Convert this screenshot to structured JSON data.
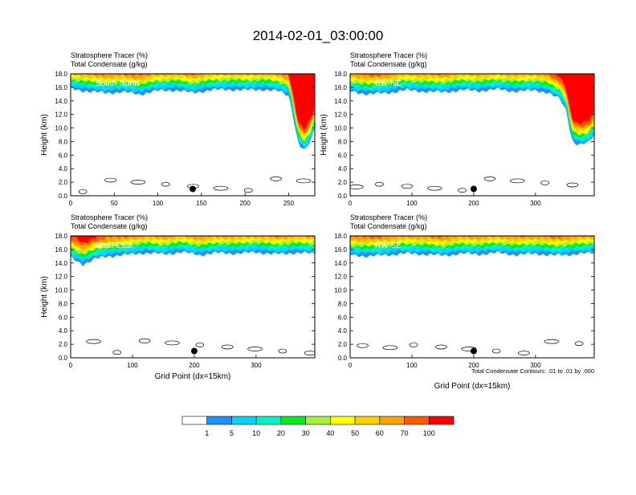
{
  "page_title": "2014-02-01_03:00:00",
  "chart_data": [
    {
      "type": "heatmap",
      "label": "South-North",
      "title_lines": [
        "Stratosphere Tracer   (%)",
        "Total Condensate   (g/kg)"
      ],
      "ylabel": "Height (km)",
      "xlabel": "",
      "xlim": [
        0,
        280
      ],
      "ylim": [
        0,
        18
      ],
      "xticks": [
        0,
        50,
        100,
        150,
        200,
        250
      ],
      "yticks": [
        "0.0",
        "2.0",
        "4.0",
        "6.0",
        "8.0",
        "10.0",
        "12.0",
        "14.0",
        "16.0",
        "18.0"
      ],
      "tracer_base_km": [
        [
          0,
          15.8
        ],
        [
          20,
          15.4
        ],
        [
          40,
          15.2
        ],
        [
          60,
          15.3
        ],
        [
          80,
          15.0
        ],
        [
          100,
          15.5
        ],
        [
          120,
          15.6
        ],
        [
          140,
          15.2
        ],
        [
          160,
          15.6
        ],
        [
          180,
          15.7
        ],
        [
          200,
          15.6
        ],
        [
          220,
          15.7
        ],
        [
          240,
          15.4
        ],
        [
          250,
          14.8
        ],
        [
          255,
          12.0
        ],
        [
          258,
          9.5
        ],
        [
          262,
          7.5
        ],
        [
          268,
          6.6
        ],
        [
          275,
          8.0
        ],
        [
          280,
          10.0
        ]
      ],
      "marker": {
        "x": 140,
        "y": 1.0
      }
    },
    {
      "type": "heatmap",
      "label": "SW-NE",
      "title_lines": [
        "Stratosphere Tracer   (%)",
        "Total Condensate   (g/kg)"
      ],
      "ylabel": "Height (km)",
      "xlabel": "",
      "xlim": [
        0,
        395
      ],
      "ylim": [
        0,
        18
      ],
      "xticks": [
        0,
        100,
        200,
        300
      ],
      "yticks": [
        "0.0",
        "2.0",
        "4.0",
        "6.0",
        "8.0",
        "10.0",
        "12.0",
        "14.0",
        "16.0",
        "18.0"
      ],
      "tracer_base_km": [
        [
          0,
          15.4
        ],
        [
          30,
          15.0
        ],
        [
          60,
          15.2
        ],
        [
          90,
          15.6
        ],
        [
          120,
          15.4
        ],
        [
          150,
          15.3
        ],
        [
          180,
          15.6
        ],
        [
          210,
          15.5
        ],
        [
          240,
          15.7
        ],
        [
          270,
          15.4
        ],
        [
          300,
          15.6
        ],
        [
          320,
          15.2
        ],
        [
          340,
          14.2
        ],
        [
          350,
          12.5
        ],
        [
          355,
          10.0
        ],
        [
          360,
          8.0
        ],
        [
          370,
          7.5
        ],
        [
          385,
          7.8
        ],
        [
          395,
          9.0
        ]
      ],
      "marker": {
        "x": 200,
        "y": 1.0
      }
    },
    {
      "type": "heatmap",
      "label": "West-East",
      "title_lines": [
        "Stratosphere Tracer   (%)",
        "Total Condensate   (g/kg)"
      ],
      "ylabel": "Height (km)",
      "xlabel": "Grid Point (dx=15km)",
      "xlim": [
        0,
        395
      ],
      "ylim": [
        0,
        18
      ],
      "xticks": [
        0,
        100,
        200,
        300
      ],
      "yticks": [
        "0.0",
        "2.0",
        "4.0",
        "6.0",
        "8.0",
        "10.0",
        "12.0",
        "14.0",
        "16.0",
        "18.0"
      ],
      "tracer_base_km": [
        [
          0,
          14.8
        ],
        [
          20,
          13.8
        ],
        [
          40,
          14.6
        ],
        [
          60,
          15.0
        ],
        [
          90,
          15.2
        ],
        [
          120,
          15.5
        ],
        [
          150,
          15.3
        ],
        [
          180,
          15.6
        ],
        [
          210,
          15.2
        ],
        [
          240,
          15.5
        ],
        [
          270,
          15.4
        ],
        [
          300,
          15.6
        ],
        [
          330,
          15.3
        ],
        [
          360,
          15.5
        ],
        [
          395,
          15.4
        ]
      ],
      "marker": {
        "x": 200,
        "y": 1.0
      }
    },
    {
      "type": "heatmap",
      "label": "NW-SE",
      "title_lines": [
        "Stratosphere Tracer   (%)",
        "Total Condensate   (g/kg)"
      ],
      "ylabel": "",
      "xlabel": "Grid Point (dx=15km)",
      "xlim": [
        0,
        395
      ],
      "ylim": [
        0,
        18
      ],
      "xticks": [
        0,
        100,
        200,
        300
      ],
      "yticks": [
        "0.0",
        "2.0",
        "4.0",
        "6.0",
        "8.0",
        "10.0",
        "12.0",
        "14.0",
        "16.0",
        "18.0"
      ],
      "tracer_base_km": [
        [
          0,
          15.2
        ],
        [
          30,
          15.0
        ],
        [
          60,
          15.2
        ],
        [
          90,
          15.4
        ],
        [
          120,
          15.3
        ],
        [
          150,
          15.1
        ],
        [
          180,
          15.4
        ],
        [
          210,
          15.3
        ],
        [
          240,
          15.5
        ],
        [
          270,
          15.2
        ],
        [
          300,
          15.4
        ],
        [
          330,
          15.1
        ],
        [
          360,
          15.3
        ],
        [
          395,
          15.5
        ]
      ],
      "marker": {
        "x": 200,
        "y": 1.0
      },
      "note": "Total Condensate Contours: .01 to .01 by .000"
    }
  ],
  "colorbar": {
    "labels": [
      "1",
      "5",
      "10",
      "20",
      "30",
      "40",
      "50",
      "60",
      "70",
      "100"
    ],
    "colors": [
      "#ffffff",
      "#1e90ff",
      "#00d4ff",
      "#00f5c0",
      "#00ee22",
      "#a6f23a",
      "#ffff00",
      "#ffd000",
      "#ffa200",
      "#ff5a00",
      "#ff0000"
    ]
  }
}
